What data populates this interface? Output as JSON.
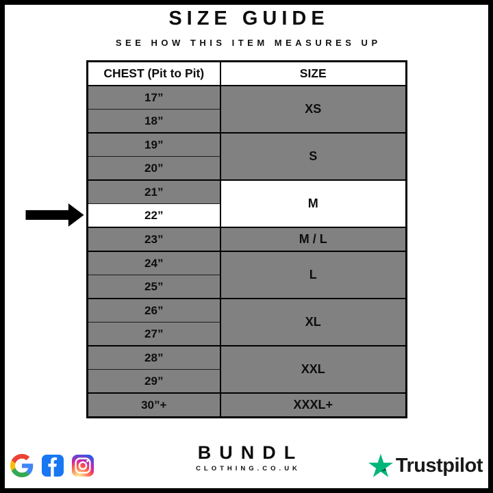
{
  "page": {
    "title": "SIZE GUIDE",
    "subtitle": "SEE HOW THIS ITEM MEASURES UP"
  },
  "table": {
    "columns": [
      "CHEST (Pit to Pit)",
      "SIZE"
    ],
    "groups": [
      {
        "size": "XS",
        "highlight": false,
        "chest": [
          {
            "label": "17”",
            "highlight": false
          },
          {
            "label": "18”",
            "highlight": false
          }
        ]
      },
      {
        "size": "S",
        "highlight": false,
        "chest": [
          {
            "label": "19”",
            "highlight": false
          },
          {
            "label": "20”",
            "highlight": false
          }
        ]
      },
      {
        "size": "M",
        "highlight": true,
        "chest": [
          {
            "label": "21”",
            "highlight": false
          },
          {
            "label": "22”",
            "highlight": true
          }
        ]
      },
      {
        "size": "M / L",
        "highlight": false,
        "chest": [
          {
            "label": "23”",
            "highlight": false
          }
        ]
      },
      {
        "size": "L",
        "highlight": false,
        "chest": [
          {
            "label": "24”",
            "highlight": false
          },
          {
            "label": "25”",
            "highlight": false
          }
        ]
      },
      {
        "size": "XL",
        "highlight": false,
        "chest": [
          {
            "label": "26”",
            "highlight": false
          },
          {
            "label": "27”",
            "highlight": false
          }
        ]
      },
      {
        "size": "XXL",
        "highlight": false,
        "chest": [
          {
            "label": "28”",
            "highlight": false
          },
          {
            "label": "29”",
            "highlight": false
          }
        ]
      },
      {
        "size": "XXXL+",
        "highlight": false,
        "chest": [
          {
            "label": "30”+",
            "highlight": false
          }
        ]
      }
    ],
    "highlighted_measurement": "22”",
    "highlighted_size": "M"
  },
  "chart_data": {
    "type": "table",
    "title": "SIZE GUIDE",
    "subtitle": "SEE HOW THIS ITEM MEASURES UP",
    "columns": [
      "CHEST (Pit to Pit)",
      "SIZE"
    ],
    "rows": [
      [
        "17”",
        "XS"
      ],
      [
        "18”",
        "XS"
      ],
      [
        "19”",
        "S"
      ],
      [
        "20”",
        "S"
      ],
      [
        "21”",
        "M"
      ],
      [
        "22”",
        "M"
      ],
      [
        "23”",
        "M / L"
      ],
      [
        "24”",
        "L"
      ],
      [
        "25”",
        "L"
      ],
      [
        "26”",
        "XL"
      ],
      [
        "27”",
        "XL"
      ],
      [
        "28”",
        "XXL"
      ],
      [
        "29”",
        "XXL"
      ],
      [
        "30”+",
        "XXXL+"
      ]
    ],
    "highlighted_row": [
      "22”",
      "M"
    ],
    "layout_hints": {
      "cell_fill": "#818181",
      "highlight_fill": "#ffffff",
      "arrow_points_to": "22”"
    }
  },
  "footer": {
    "social_icons": [
      "google-icon",
      "facebook-icon",
      "instagram-icon"
    ],
    "brand_name": "BUNDL",
    "brand_domain": "CLOTHING.CO.UK",
    "trustpilot_label": "Trustpilot"
  },
  "colors": {
    "cell_gray": "#818181",
    "highlight_white": "#ffffff",
    "frame_black": "#000000",
    "facebook_blue": "#1877F2",
    "trustpilot_green": "#00B67A",
    "trustpilot_dark_green": "#005128",
    "google_blue": "#4285F4",
    "google_red": "#EA4335",
    "google_yellow": "#FBBC05",
    "google_green": "#34A853"
  }
}
